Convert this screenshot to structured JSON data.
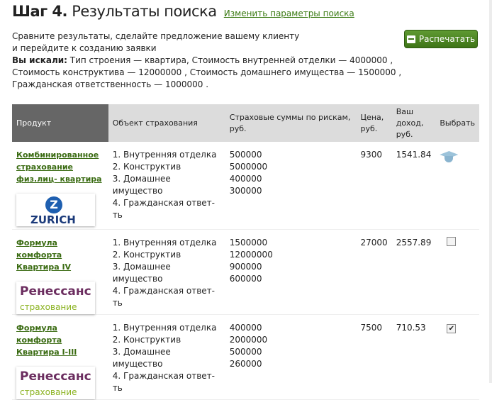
{
  "header": {
    "step": "Шаг 4.",
    "title": "Результаты поиска",
    "change_link": "Изменить параметры поиска"
  },
  "intro": {
    "line1": "Сравните результаты, сделайте предложение вашему клиенту",
    "line2": "и перейдите к созданию заявки",
    "searched_label": "Вы искали:",
    "searched_text": "Тип строения — квартира, Стоимость внутренней отделки — 4000000 , Стоимость конструктива — 12000000 , Стоимость домашнего имущества — 1500000 , Гражданская ответственность — 1000000 ."
  },
  "print_button": "Распечатать",
  "table": {
    "headers": {
      "product": "Продукт",
      "object": "Объект страхования",
      "sums": "Страховые суммы по рискам, руб.",
      "price": "Цена, руб.",
      "income": "Ваш доход, руб.",
      "select": "Выбрать"
    },
    "rows": [
      {
        "product": "Комбинированное страхование физ.лиц- квартира",
        "logo": {
          "symbol": "Z",
          "name": "ZURICH"
        },
        "objects": [
          "1. Внутренняя отделка",
          "2. Конструктив",
          "3. Домашнее имущество",
          "4. Гражданская ответ-ть"
        ],
        "sums": [
          "500000",
          "5000000",
          "400000",
          "300000"
        ],
        "price": "9300",
        "income": "1541.84",
        "select": "graduation-cap-icon"
      },
      {
        "product": "Формула комфорта Квартира IV",
        "logo": {
          "name": "Ренессанс",
          "sub": "страхование"
        },
        "objects": [
          "1. Внутренняя отделка",
          "2. Конструктив",
          "3. Домашнее имущество",
          "4. Гражданская ответ-ть"
        ],
        "sums": [
          "1500000",
          "12000000",
          "900000",
          "600000"
        ],
        "price": "27000",
        "income": "2557.89",
        "select": "unchecked"
      },
      {
        "product": "Формула комфорта Квартира I-III",
        "logo": {
          "name": "Ренессанс",
          "sub": "страхование"
        },
        "objects": [
          "1. Внутренняя отделка",
          "2. Конструктив",
          "3. Домашнее имущество",
          "4. Гражданская ответ-ть"
        ],
        "sums": [
          "400000",
          "2000000",
          "500000",
          "260000"
        ],
        "price": "7500",
        "income": "710.53",
        "select": "checked"
      }
    ]
  },
  "colors": {
    "accent": "#3e7417",
    "link": "#3a7a12",
    "header_dark": "#666666",
    "header_light": "#dcdcdc"
  }
}
